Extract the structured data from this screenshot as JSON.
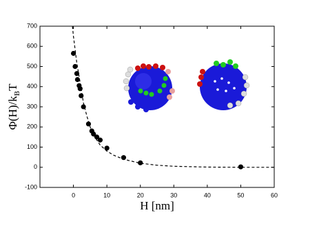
{
  "chart_data": {
    "type": "scatter",
    "x_label": "H [nm]",
    "y_label": [
      "Φ(H)/k",
      "B",
      "T"
    ],
    "xlim": [
      -10,
      60
    ],
    "xticks": [
      0,
      10,
      20,
      30,
      40,
      50,
      60
    ],
    "ylim": [
      -100,
      700
    ],
    "yticks": [
      -100,
      0,
      100,
      200,
      300,
      400,
      500,
      600,
      700
    ],
    "series": [
      {
        "marker": "circle",
        "color": "#000000",
        "x": [
          0,
          0.5,
          1,
          1.2,
          1.7,
          2,
          2.3,
          3,
          4.5,
          5.5,
          6,
          7,
          8,
          10,
          15,
          20,
          50
        ],
        "values": [
          565,
          500,
          465,
          435,
          405,
          390,
          355,
          300,
          215,
          180,
          165,
          150,
          135,
          95,
          48,
          22,
          2
        ]
      },
      {
        "line_style": "dashed",
        "color": "#000000",
        "x": [
          -0.3,
          0,
          1,
          2,
          3,
          4,
          5,
          6,
          8,
          10,
          12,
          15,
          20,
          25,
          30,
          40,
          50,
          60
        ],
        "values": [
          700,
          650,
          520,
          420,
          320,
          255,
          200,
          160,
          110,
          80,
          60,
          40,
          20,
          10,
          5,
          1,
          0,
          0
        ]
      }
    ]
  }
}
